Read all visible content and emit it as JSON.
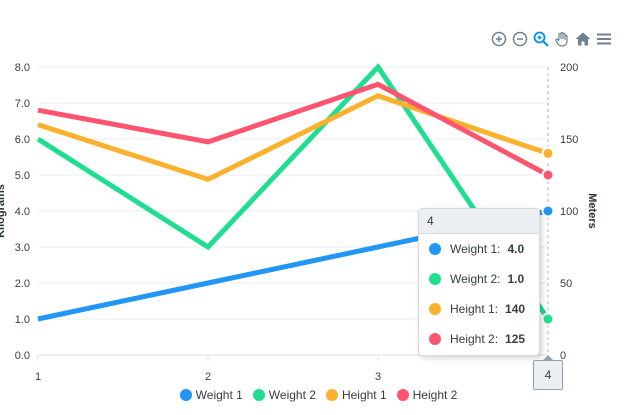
{
  "chart_data": {
    "type": "line",
    "categories": [
      "1",
      "2",
      "3",
      "4"
    ],
    "xlabel": "",
    "y_left": {
      "label": "Kilograms",
      "ylim": [
        0,
        8
      ],
      "ticks": [
        "0.0",
        "1.0",
        "2.0",
        "3.0",
        "4.0",
        "5.0",
        "6.0",
        "7.0",
        "8.0"
      ]
    },
    "y_right": {
      "label": "Meters",
      "ylim": [
        0,
        200
      ],
      "ticks": [
        "0",
        "50",
        "100",
        "150",
        "200"
      ]
    },
    "series": [
      {
        "name": "Weight 1",
        "axis": "left",
        "color": "#2196f3",
        "values": [
          1.0,
          2.0,
          3.0,
          4.0
        ]
      },
      {
        "name": "Weight 2",
        "axis": "left",
        "color": "#1fde8f",
        "values": [
          6.0,
          3.0,
          8.0,
          1.0
        ]
      },
      {
        "name": "Height 1",
        "axis": "right",
        "color": "#fbb12d",
        "values": [
          160,
          122,
          180,
          140
        ]
      },
      {
        "name": "Height 2",
        "axis": "right",
        "color": "#ff5470",
        "values": [
          170,
          148,
          188,
          125
        ]
      }
    ],
    "legend_position": "bottom",
    "grid": true
  },
  "tooltip": {
    "title": "4",
    "rows": [
      {
        "label": "Weight 1:",
        "value": "4.0",
        "color": "#2196f3"
      },
      {
        "label": "Weight 2:",
        "value": "1.0",
        "color": "#1fde8f"
      },
      {
        "label": "Height 1:",
        "value": "140",
        "color": "#fbb12d"
      },
      {
        "label": "Height 2:",
        "value": "125",
        "color": "#ff5470"
      }
    ]
  },
  "x_crosshair_label": "4",
  "toolbar": {
    "icons": [
      "zoom-in-icon",
      "zoom-out-icon",
      "zoom-selection-icon",
      "pan-hand-icon",
      "home-reset-icon",
      "menu-icon"
    ]
  }
}
